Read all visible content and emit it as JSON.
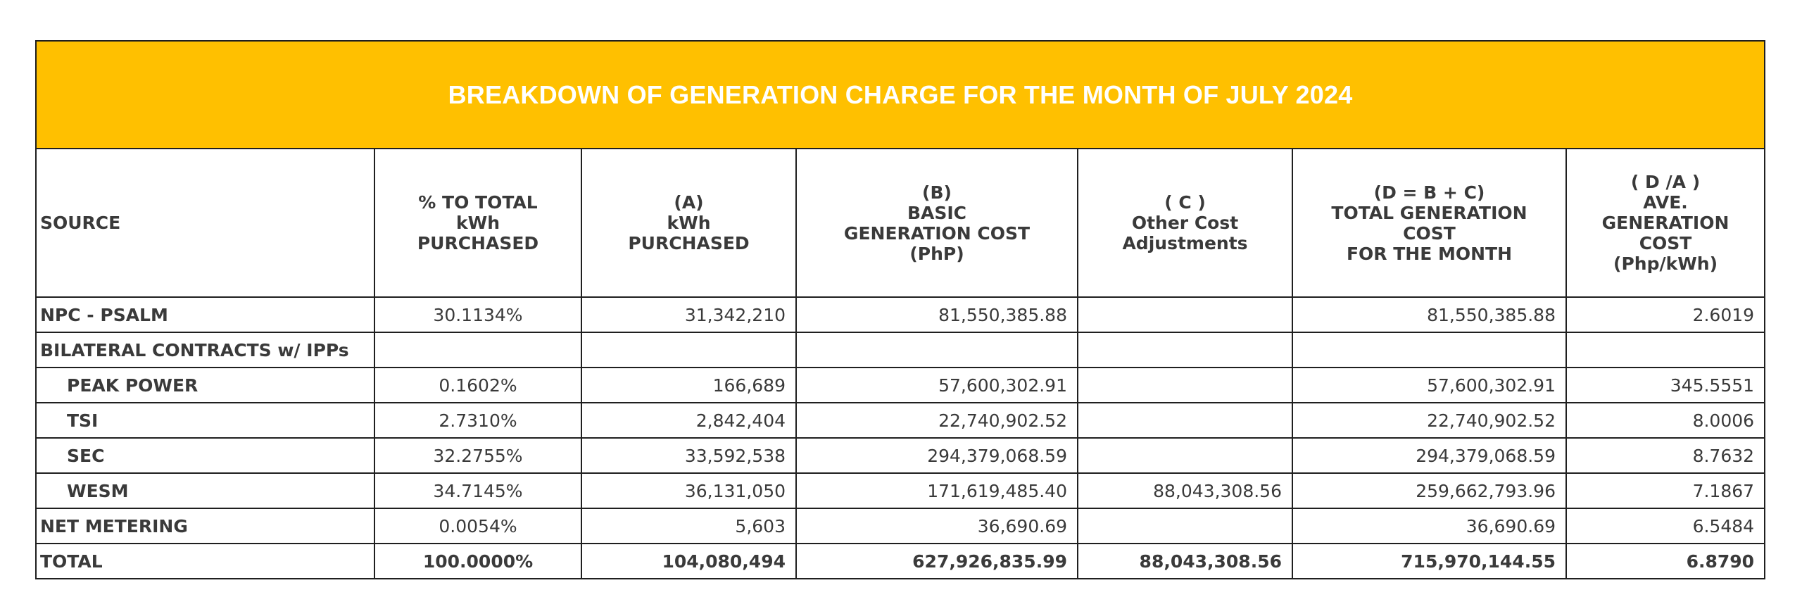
{
  "title": "BREAKDOWN OF GENERATION CHARGE FOR THE MONTH OF JULY 2024",
  "headers": {
    "source": "SOURCE",
    "pct": [
      "% TO TOTAL",
      "kWh",
      "PURCHASED"
    ],
    "kwh": [
      "(A)",
      "kWh",
      "PURCHASED"
    ],
    "basic": [
      "(B)",
      "BASIC",
      "GENERATION COST",
      "(PhP)"
    ],
    "other": [
      "( C )",
      "Other Cost",
      "Adjustments"
    ],
    "total": [
      "(D = B + C)",
      "TOTAL GENERATION COST",
      "FOR THE MONTH"
    ],
    "ave": [
      "( D /A )",
      "AVE. GENERATION",
      "COST",
      "(Php/kWh)"
    ]
  },
  "rows": [
    {
      "source": "NPC - PSALM",
      "pct": "30.1134%",
      "kwh": "31,342,210",
      "basic": "81,550,385.88",
      "other": "",
      "total": "81,550,385.88",
      "ave": "2.6019"
    },
    {
      "source": "BILATERAL CONTRACTS w/ IPPs",
      "pct": "",
      "kwh": "",
      "basic": "",
      "other": "",
      "total": "",
      "ave": ""
    },
    {
      "source": "PEAK POWER",
      "pct": "0.1602%",
      "kwh": "166,689",
      "basic": "57,600,302.91",
      "other": "",
      "total": "57,600,302.91",
      "ave": "345.5551"
    },
    {
      "source": "TSI",
      "pct": "2.7310%",
      "kwh": "2,842,404",
      "basic": "22,740,902.52",
      "other": "",
      "total": "22,740,902.52",
      "ave": "8.0006"
    },
    {
      "source": "SEC",
      "pct": "32.2755%",
      "kwh": "33,592,538",
      "basic": "294,379,068.59",
      "other": "",
      "total": "294,379,068.59",
      "ave": "8.7632"
    },
    {
      "source": "WESM",
      "pct": "34.7145%",
      "kwh": "36,131,050",
      "basic": "171,619,485.40",
      "other": "88,043,308.56",
      "total": "259,662,793.96",
      "ave": "7.1867"
    },
    {
      "source": "NET METERING",
      "pct": "0.0054%",
      "kwh": "5,603",
      "basic": "36,690.69",
      "other": "",
      "total": "36,690.69",
      "ave": "6.5484"
    },
    {
      "source": "TOTAL",
      "pct": "100.0000%",
      "kwh": "104,080,494",
      "basic": "627,926,835.99",
      "other": "88,043,308.56",
      "total": "715,970,144.55",
      "ave": "6.8790"
    }
  ],
  "colors": {
    "title_background": "#ffc000",
    "title_text": "#ffffff",
    "text": "#3a3a3a",
    "border": "#1f1f1f"
  }
}
